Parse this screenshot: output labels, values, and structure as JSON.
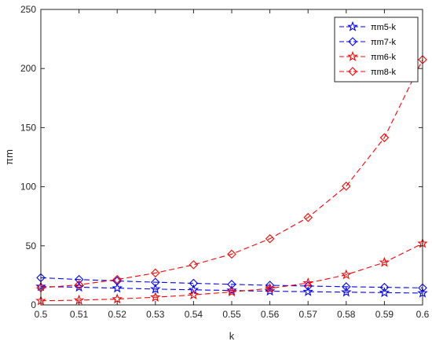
{
  "chart_data": {
    "type": "line",
    "xlabel": "k",
    "ylabel": "πm",
    "xlim": [
      0.5,
      0.6
    ],
    "ylim": [
      0,
      250
    ],
    "x": [
      0.5,
      0.51,
      0.52,
      0.53,
      0.54,
      0.55,
      0.56,
      0.57,
      0.58,
      0.59,
      0.6
    ],
    "x_ticks": [
      "0.5",
      "0.51",
      "0.52",
      "0.53",
      "0.54",
      "0.55",
      "0.56",
      "0.57",
      "0.58",
      "0.59",
      "0.6"
    ],
    "y_ticks": [
      "0",
      "50",
      "100",
      "150",
      "200",
      "250"
    ],
    "y_tick_values": [
      0,
      50,
      100,
      150,
      200,
      250
    ],
    "grid": false,
    "legend_position": "top-right",
    "series": [
      {
        "name": "πm5-k",
        "color": "#0000ff",
        "marker": "star",
        "values": [
          15.5,
          15.0,
          14.2,
          13.4,
          12.8,
          12.2,
          11.6,
          11.2,
          10.8,
          10.4,
          10.0
        ]
      },
      {
        "name": "πm7-k",
        "color": "#0000ff",
        "marker": "diamond",
        "values": [
          23.0,
          21.5,
          20.3,
          19.2,
          18.3,
          17.4,
          16.6,
          16.0,
          15.4,
          14.9,
          14.4
        ]
      },
      {
        "name": "πm6-k",
        "color": "#ff0000",
        "marker": "star",
        "values": [
          3.5,
          4.0,
          5.0,
          6.5,
          8.5,
          11.0,
          14.0,
          18.5,
          25.5,
          36.0,
          52.0
        ]
      },
      {
        "name": "πm8-k",
        "color": "#ff0000",
        "marker": "diamond",
        "values": [
          14.5,
          17.0,
          21.5,
          27.0,
          34.0,
          43.0,
          56.0,
          74.0,
          100.5,
          141.5,
          207.5
        ]
      }
    ]
  }
}
